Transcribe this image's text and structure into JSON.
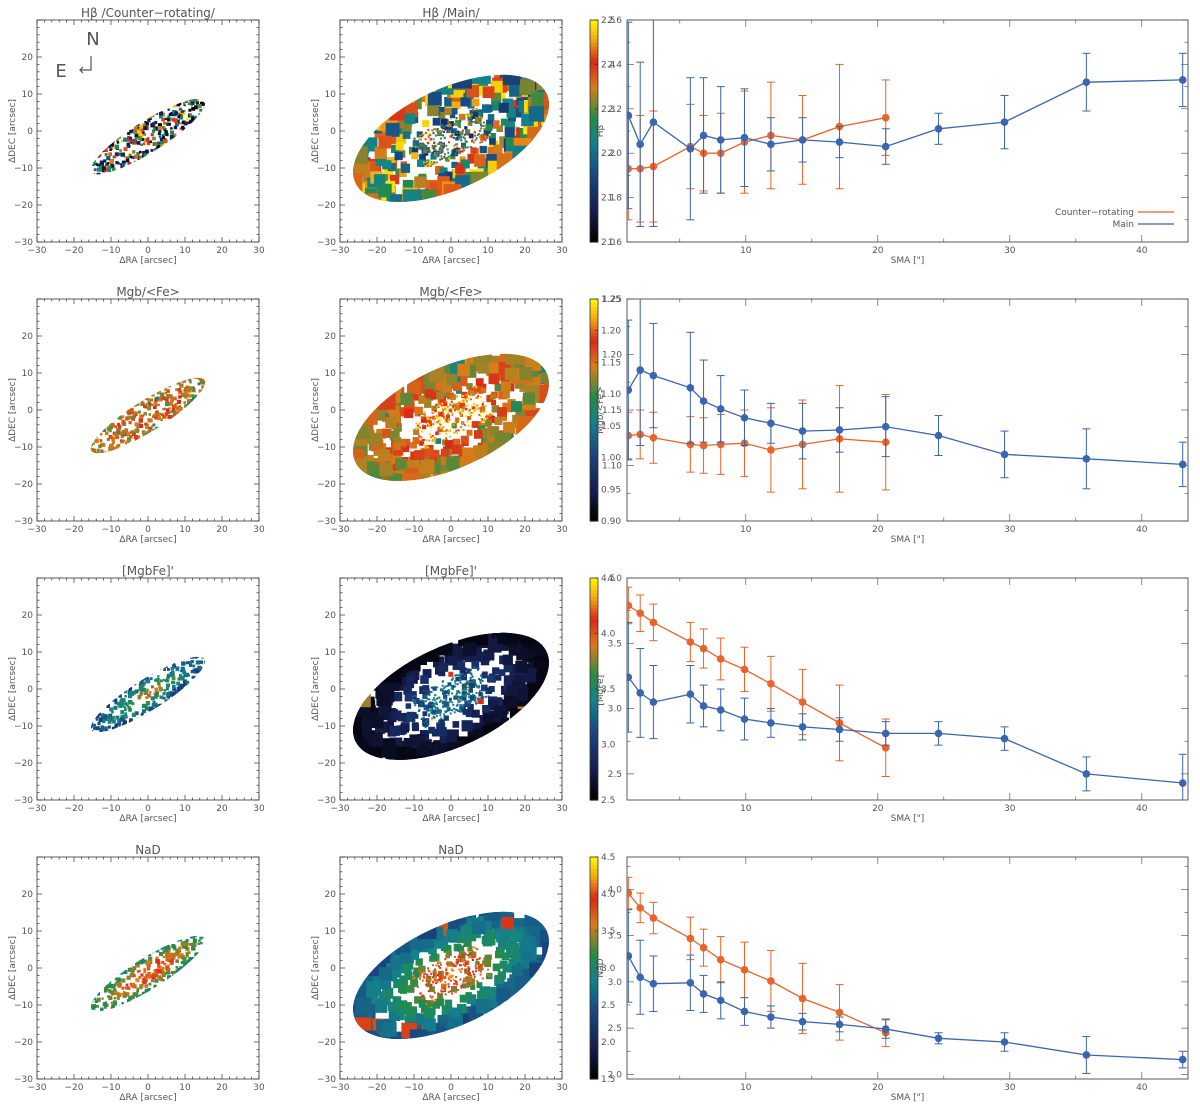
{
  "figure": {
    "orientation": {
      "north_label": "N",
      "east_label": "E"
    },
    "colors": {
      "counter_rotating": "#E8642A",
      "main": "#3B65AE",
      "map_frame": "#333333"
    }
  },
  "chart_data": [
    {
      "type": "heatmap",
      "row": 0,
      "column": "counter-rotating-map",
      "title": "Hβ /Counter−rotating/",
      "xlabel": "ΔRA [arcsec]",
      "ylabel": "ΔDEC [arcsec]",
      "xlim": [
        -30,
        30
      ],
      "ylim": [
        -30,
        30
      ],
      "xticks": [
        "−30",
        "−20",
        "−10",
        "0",
        "10",
        "20",
        "30"
      ],
      "yticks": [
        "−30",
        "−20",
        "−10",
        "0",
        "10",
        "20"
      ],
      "colormap_range": [
        2.0,
        2.5
      ]
    },
    {
      "type": "heatmap",
      "row": 0,
      "column": "main-map",
      "title": "Hβ /Main/",
      "xlabel": "ΔRA [arcsec]",
      "ylabel": "ΔDEC [arcsec]",
      "xlim": [
        -30,
        30
      ],
      "ylim": [
        -30,
        30
      ],
      "xticks": [
        "−30",
        "−20",
        "−10",
        "0",
        "10",
        "20",
        "30"
      ],
      "yticks": [
        "−30",
        "−20",
        "−10",
        "0",
        "10",
        "20"
      ],
      "colorbar": {
        "min": 2.0,
        "max": 2.5,
        "ticks": [
          "2.0",
          "2.1",
          "2.2",
          "2.3",
          "2.4",
          "2.5"
        ]
      }
    },
    {
      "type": "line",
      "row": 0,
      "column": "profile",
      "title": "",
      "xlabel": "SMA [\"]",
      "ylabel": "Hβ",
      "xlim": [
        1,
        43.5
      ],
      "ylim": [
        1.6,
        2.6
      ],
      "xticks": [
        "10",
        "20",
        "30",
        "40"
      ],
      "xtick_values": [
        10,
        20,
        30,
        40
      ],
      "yticks": [
        "1.6",
        "1.8",
        "2.0",
        "2.2",
        "2.4",
        "2.6"
      ],
      "ytick_values": [
        1.6,
        1.8,
        2.0,
        2.2,
        2.4,
        2.6
      ],
      "legend": {
        "placement": "bottom-right",
        "entries": [
          "Counter−rotating",
          "Main"
        ]
      },
      "series": [
        {
          "name": "Counter−rotating",
          "x": [
            1.1,
            2.0,
            3.0,
            5.8,
            6.8,
            8.1,
            9.9,
            11.9,
            14.3,
            17.1,
            20.6
          ],
          "y": [
            1.93,
            1.93,
            1.94,
            2.03,
            2.0,
            2.0,
            2.05,
            2.08,
            2.06,
            2.12,
            2.16
          ],
          "err": [
            0.23,
            0.24,
            0.25,
            0.19,
            0.17,
            0.18,
            0.23,
            0.24,
            0.2,
            0.28,
            0.17
          ]
        },
        {
          "name": "Main",
          "x": [
            1.1,
            2.0,
            3.0,
            5.8,
            6.8,
            8.1,
            9.9,
            11.9,
            14.3,
            17.1,
            20.6,
            24.6,
            29.6,
            35.8,
            43.1
          ],
          "y": [
            2.17,
            2.04,
            2.14,
            2.02,
            2.08,
            2.06,
            2.07,
            2.04,
            2.06,
            2.05,
            2.03,
            2.11,
            2.14,
            2.32,
            2.33
          ],
          "err": [
            0.42,
            0.37,
            0.47,
            0.32,
            0.26,
            0.24,
            0.22,
            0.12,
            0.1,
            0.07,
            0.08,
            0.07,
            0.12,
            0.13,
            0.12
          ]
        }
      ]
    },
    {
      "type": "heatmap",
      "row": 1,
      "column": "counter-rotating-map",
      "title": "Mgb/<Fe>",
      "xlabel": "ΔRA [arcsec]",
      "ylabel": "ΔDEC [arcsec]",
      "xlim": [
        -30,
        30
      ],
      "ylim": [
        -30,
        30
      ],
      "xticks": [
        "−30",
        "−20",
        "−10",
        "0",
        "10",
        "20",
        "30"
      ],
      "yticks": [
        "−30",
        "−20",
        "−10",
        "0",
        "10",
        "20"
      ],
      "colormap_range": [
        0.9,
        1.25
      ]
    },
    {
      "type": "heatmap",
      "row": 1,
      "column": "main-map",
      "title": "Mgb/<Fe>",
      "xlabel": "ΔRA [arcsec]",
      "ylabel": "ΔDEC [arcsec]",
      "xlim": [
        -30,
        30
      ],
      "ylim": [
        -30,
        30
      ],
      "xticks": [
        "−30",
        "−20",
        "−10",
        "0",
        "10",
        "20",
        "30"
      ],
      "yticks": [
        "−30",
        "−20",
        "−10",
        "0",
        "10",
        "20"
      ],
      "colorbar": {
        "min": 0.9,
        "max": 1.25,
        "ticks": [
          "0.90",
          "0.95",
          "1.00",
          "1.05",
          "1.10",
          "1.15",
          "1.20",
          "1.25"
        ]
      }
    },
    {
      "type": "line",
      "row": 1,
      "column": "profile",
      "title": "",
      "xlabel": "SMA [\"]",
      "ylabel": "Mgb/<Fe>",
      "xlim": [
        1,
        43.5
      ],
      "ylim": [
        1.05,
        1.25
      ],
      "xticks": [
        "10",
        "20",
        "30",
        "40"
      ],
      "xtick_values": [
        10,
        20,
        30,
        40
      ],
      "yticks": [
        "1.10",
        "1.15",
        "1.20",
        "1.25"
      ],
      "ytick_values": [
        1.1,
        1.15,
        1.2,
        1.25
      ],
      "series": [
        {
          "name": "Counter−rotating",
          "x": [
            1.1,
            2.0,
            3.0,
            5.8,
            6.8,
            8.1,
            9.9,
            11.9,
            14.3,
            17.1,
            20.6
          ],
          "y": [
            1.127,
            1.128,
            1.125,
            1.119,
            1.118,
            1.119,
            1.12,
            1.114,
            1.119,
            1.124,
            1.121
          ],
          "err": [
            0.021,
            0.022,
            0.023,
            0.025,
            0.025,
            0.027,
            0.03,
            0.038,
            0.04,
            0.048,
            0.043
          ]
        },
        {
          "name": "Main",
          "x": [
            1.1,
            2.0,
            3.0,
            5.8,
            6.8,
            8.1,
            9.9,
            11.9,
            14.3,
            17.1,
            20.6,
            24.6,
            29.6,
            35.8,
            43.1
          ],
          "y": [
            1.168,
            1.186,
            1.181,
            1.17,
            1.158,
            1.151,
            1.143,
            1.138,
            1.131,
            1.132,
            1.135,
            1.127,
            1.11,
            1.106,
            1.101
          ],
          "err": [
            0.063,
            0.068,
            0.047,
            0.05,
            0.037,
            0.03,
            0.025,
            0.018,
            0.025,
            0.02,
            0.027,
            0.018,
            0.021,
            0.027,
            0.02
          ]
        }
      ]
    },
    {
      "type": "heatmap",
      "row": 2,
      "column": "counter-rotating-map",
      "title": "[MgbFe]'",
      "xlabel": "ΔRA [arcsec]",
      "ylabel": "ΔDEC [arcsec]",
      "xlim": [
        -30,
        30
      ],
      "ylim": [
        -30,
        30
      ],
      "xticks": [
        "−30",
        "−20",
        "−10",
        "0",
        "10",
        "20",
        "30"
      ],
      "yticks": [
        "−30",
        "−20",
        "−10",
        "0",
        "10",
        "20"
      ],
      "colormap_range": [
        2.5,
        4.5
      ]
    },
    {
      "type": "heatmap",
      "row": 2,
      "column": "main-map",
      "title": "[MgbFe]'",
      "xlabel": "ΔRA [arcsec]",
      "ylabel": "ΔDEC [arcsec]",
      "xlim": [
        -30,
        30
      ],
      "ylim": [
        -30,
        30
      ],
      "xticks": [
        "−30",
        "−20",
        "−10",
        "0",
        "10",
        "20",
        "30"
      ],
      "yticks": [
        "−30",
        "−20",
        "−10",
        "0",
        "10",
        "20"
      ],
      "colorbar": {
        "min": 2.5,
        "max": 4.5,
        "ticks": [
          "2.5",
          "3.0",
          "3.5",
          "4.0",
          "4.5"
        ]
      }
    },
    {
      "type": "line",
      "row": 2,
      "column": "profile",
      "title": "",
      "xlabel": "SMA [\"]",
      "ylabel": "[MgFe]'",
      "xlim": [
        1,
        43.5
      ],
      "ylim": [
        2.3,
        4.0
      ],
      "xticks": [
        "10",
        "20",
        "30",
        "40"
      ],
      "xtick_values": [
        10,
        20,
        30,
        40
      ],
      "yticks": [
        "2.5",
        "3.0",
        "3.5",
        "4.0"
      ],
      "ytick_values": [
        2.5,
        3.0,
        3.5,
        4.0
      ],
      "series": [
        {
          "name": "Counter−rotating",
          "x": [
            1.1,
            2.0,
            3.0,
            5.8,
            6.8,
            8.1,
            9.9,
            11.9,
            14.3,
            17.1,
            20.6
          ],
          "y": [
            3.79,
            3.73,
            3.66,
            3.51,
            3.46,
            3.38,
            3.3,
            3.19,
            3.05,
            2.89,
            2.7
          ],
          "err": [
            0.14,
            0.14,
            0.14,
            0.15,
            0.15,
            0.16,
            0.17,
            0.21,
            0.25,
            0.29,
            0.22
          ]
        },
        {
          "name": "Main",
          "x": [
            1.1,
            2.0,
            3.0,
            5.8,
            6.8,
            8.1,
            9.9,
            11.9,
            14.3,
            17.1,
            20.6,
            24.6,
            29.6,
            35.8,
            43.1
          ],
          "y": [
            3.24,
            3.12,
            3.05,
            3.11,
            3.02,
            2.99,
            2.92,
            2.89,
            2.86,
            2.84,
            2.81,
            2.81,
            2.77,
            2.5,
            2.43
          ],
          "err": [
            0.42,
            0.34,
            0.28,
            0.22,
            0.16,
            0.16,
            0.16,
            0.11,
            0.1,
            0.09,
            0.09,
            0.09,
            0.09,
            0.13,
            0.22
          ]
        }
      ]
    },
    {
      "type": "heatmap",
      "row": 3,
      "column": "counter-rotating-map",
      "title": "NaD",
      "xlabel": "ΔRA [arcsec]",
      "ylabel": "ΔDEC [arcsec]",
      "xlim": [
        -30,
        30
      ],
      "ylim": [
        -30,
        30
      ],
      "xticks": [
        "−30",
        "−20",
        "−10",
        "0",
        "10",
        "20",
        "30"
      ],
      "yticks": [
        "−30",
        "−20",
        "−10",
        "0",
        "10",
        "20"
      ],
      "colormap_range": [
        1.5,
        4.5
      ]
    },
    {
      "type": "heatmap",
      "row": 3,
      "column": "main-map",
      "title": "NaD",
      "xlabel": "ΔRA [arcsec]",
      "ylabel": "ΔDEC [arcsec]",
      "xlim": [
        -30,
        30
      ],
      "ylim": [
        -30,
        30
      ],
      "xticks": [
        "−30",
        "−20",
        "−10",
        "0",
        "10",
        "20",
        "30"
      ],
      "yticks": [
        "−30",
        "−20",
        "−10",
        "0",
        "10",
        "20"
      ],
      "colorbar": {
        "min": 1.5,
        "max": 4.5,
        "ticks": [
          "1.5",
          "2.0",
          "2.5",
          "3.0",
          "3.5",
          "4.0",
          "4.5"
        ]
      }
    },
    {
      "type": "line",
      "row": 3,
      "column": "profile",
      "title": "",
      "xlabel": "SMA [\"]",
      "ylabel": "NaD",
      "xlim": [
        1,
        43.5
      ],
      "ylim": [
        1.95,
        4.35
      ],
      "xticks": [
        "10",
        "20",
        "30",
        "40"
      ],
      "xtick_values": [
        10,
        20,
        30,
        40
      ],
      "yticks": [
        "2.0",
        "2.5",
        "3.0",
        "3.5",
        "4.0"
      ],
      "ytick_values": [
        2.0,
        2.5,
        3.0,
        3.5,
        4.0
      ],
      "series": [
        {
          "name": "Counter−rotating",
          "x": [
            1.1,
            2.0,
            3.0,
            5.8,
            6.8,
            8.1,
            9.9,
            11.9,
            14.3,
            17.1,
            20.6
          ],
          "y": [
            3.96,
            3.8,
            3.69,
            3.47,
            3.37,
            3.24,
            3.13,
            3.01,
            2.82,
            2.67,
            2.45
          ],
          "err": [
            0.17,
            0.16,
            0.17,
            0.23,
            0.2,
            0.25,
            0.3,
            0.33,
            0.38,
            0.3,
            0.15
          ]
        },
        {
          "name": "Main",
          "x": [
            1.1,
            2.0,
            3.0,
            5.8,
            6.8,
            8.1,
            9.9,
            11.9,
            14.3,
            17.1,
            20.6,
            24.6,
            29.6,
            35.8,
            43.1
          ],
          "y": [
            3.28,
            3.05,
            2.98,
            2.99,
            2.87,
            2.8,
            2.68,
            2.62,
            2.57,
            2.54,
            2.49,
            2.39,
            2.35,
            2.21,
            2.16
          ],
          "err": [
            0.5,
            0.4,
            0.3,
            0.3,
            0.2,
            0.2,
            0.15,
            0.12,
            0.09,
            0.08,
            0.1,
            0.06,
            0.1,
            0.2,
            0.09
          ]
        }
      ]
    }
  ]
}
